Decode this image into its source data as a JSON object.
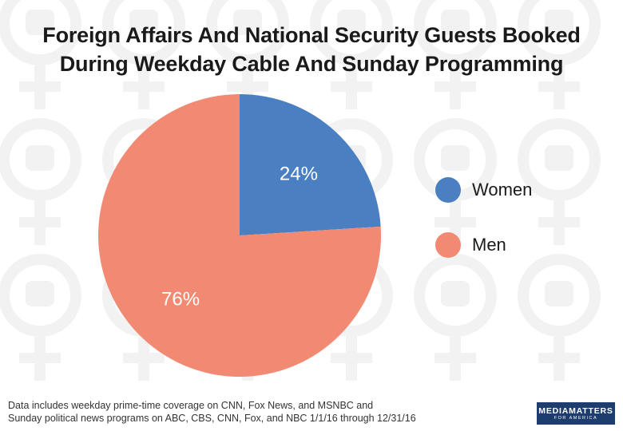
{
  "chart_data": {
    "type": "pie",
    "title_lines": [
      "Foreign Affairs And National Security Guests Booked",
      "During Weekday Cable And Sunday Programming"
    ],
    "slices": [
      {
        "name": "Women",
        "value": 24,
        "label": "24%",
        "color": "#4a80c2"
      },
      {
        "name": "Men",
        "value": 76,
        "label": "76%",
        "color": "#f28a73"
      }
    ],
    "start": "12 o'clock",
    "direction": "clockwise",
    "legend_position": "right"
  },
  "footnote_lines": [
    "Data includes weekday prime-time coverage on CNN, Fox News, and MSNBC and",
    "Sunday political news programs on ABC, CBS, CNN, Fox, and NBC 1/1/16 through 12/31/16"
  ],
  "logo": {
    "main": "MEDIAMATTERS",
    "sub": "FOR AMERICA"
  },
  "colors": {
    "women": "#4a80c2",
    "men": "#f28a73",
    "logo_bg": "#1c3d6e"
  }
}
